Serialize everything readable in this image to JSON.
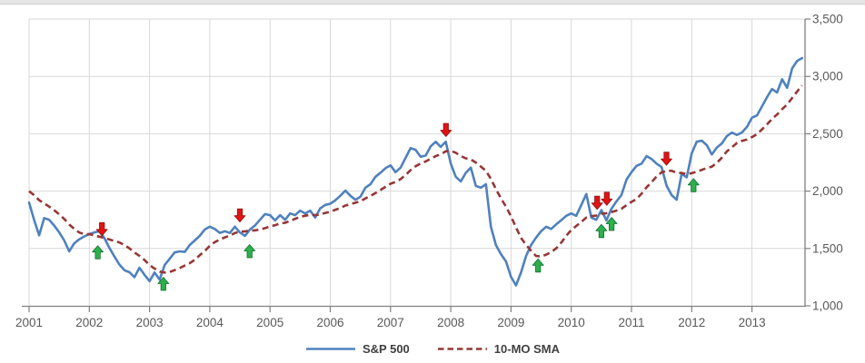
{
  "chart_data": {
    "type": "line",
    "title": "",
    "frequency": "monthly",
    "start": "2001-01",
    "x_axis": {
      "min": 2001.0,
      "max": 2013.88,
      "tick_years": [
        2001,
        2002,
        2003,
        2004,
        2005,
        2006,
        2007,
        2008,
        2009,
        2010,
        2011,
        2012,
        2013
      ],
      "tick_labels": [
        "2001",
        "2002",
        "2003",
        "2004",
        "2005",
        "2006",
        "2007",
        "2008",
        "2009",
        "2010",
        "2011",
        "2012",
        "2013"
      ]
    },
    "y_axis": {
      "side": "right",
      "min": 1000,
      "max": 3500,
      "tick_values": [
        1000,
        1500,
        2000,
        2500,
        3000,
        3500
      ],
      "tick_labels": [
        "1,000",
        "1,500",
        "2,000",
        "2,500",
        "3,000",
        "3,500"
      ]
    },
    "grid": true,
    "legend_position": "bottom-center",
    "series": [
      {
        "name": "S&P 500",
        "color": "#4F81BD",
        "style": "solid",
        "values": [
          1900,
          1750,
          1615,
          1765,
          1750,
          1700,
          1640,
          1570,
          1475,
          1545,
          1580,
          1605,
          1625,
          1640,
          1650,
          1590,
          1505,
          1430,
          1360,
          1310,
          1293,
          1250,
          1332,
          1270,
          1215,
          1290,
          1229,
          1355,
          1410,
          1465,
          1475,
          1470,
          1530,
          1570,
          1610,
          1665,
          1690,
          1670,
          1635,
          1650,
          1635,
          1690,
          1640,
          1610,
          1665,
          1700,
          1750,
          1800,
          1790,
          1745,
          1790,
          1750,
          1805,
          1790,
          1830,
          1805,
          1830,
          1770,
          1850,
          1880,
          1890,
          1920,
          1960,
          2005,
          1960,
          1925,
          1950,
          2030,
          2060,
          2125,
          2160,
          2200,
          2225,
          2165,
          2205,
          2290,
          2375,
          2360,
          2300,
          2310,
          2390,
          2430,
          2385,
          2430,
          2240,
          2125,
          2085,
          2160,
          2205,
          2045,
          2030,
          2060,
          1688,
          1530,
          1451,
          1387,
          1253,
          1178,
          1293,
          1435,
          1530,
          1595,
          1650,
          1690,
          1670,
          1710,
          1745,
          1785,
          1805,
          1785,
          1880,
          1975,
          1770,
          1750,
          1835,
          1745,
          1845,
          1910,
          1965,
          2100,
          2165,
          2220,
          2240,
          2305,
          2280,
          2240,
          2210,
          2045,
          1965,
          1925,
          2150,
          2120,
          2330,
          2430,
          2440,
          2400,
          2320,
          2380,
          2415,
          2480,
          2510,
          2490,
          2510,
          2560,
          2640,
          2660,
          2740,
          2820,
          2890,
          2860,
          2975,
          2900,
          3070,
          3135,
          3160
        ]
      },
      {
        "name": "10-MO SMA",
        "color": "#953735",
        "style": "dashed",
        "derived": "10-month trailing simple moving average of S&P 500 series",
        "window_months": 10,
        "seed_prior_months": [
          2085,
          2065,
          2045,
          2030,
          2010,
          1995,
          1980,
          1955,
          1925
        ]
      }
    ],
    "signals": {
      "sell": {
        "label": "sell-signal",
        "color": "#E01414",
        "edge_color": "#8F1010",
        "shape": "block-arrow-down",
        "points": [
          {
            "year": 2002.21,
            "value": 1670
          },
          {
            "year": 2004.5,
            "value": 1790
          },
          {
            "year": 2007.92,
            "value": 2535
          },
          {
            "year": 2010.43,
            "value": 1900
          },
          {
            "year": 2010.59,
            "value": 1935
          },
          {
            "year": 2011.58,
            "value": 2285
          }
        ]
      },
      "buy": {
        "label": "buy-signal",
        "color": "#2CB04B",
        "edge_color": "#156D31",
        "shape": "block-arrow-up",
        "points": [
          {
            "year": 2002.14,
            "value": 1465
          },
          {
            "year": 2003.23,
            "value": 1190
          },
          {
            "year": 2004.66,
            "value": 1475
          },
          {
            "year": 2009.45,
            "value": 1350
          },
          {
            "year": 2010.5,
            "value": 1650
          },
          {
            "year": 2010.67,
            "value": 1712
          },
          {
            "year": 2012.03,
            "value": 2050
          }
        ]
      }
    },
    "colors": {
      "grid": "#D9D9D9",
      "axis": "#808080",
      "tick_label": "#595959",
      "legend_label": "#404040",
      "background": "#FFFFFF",
      "top_edge": "#E6E6E6"
    }
  }
}
